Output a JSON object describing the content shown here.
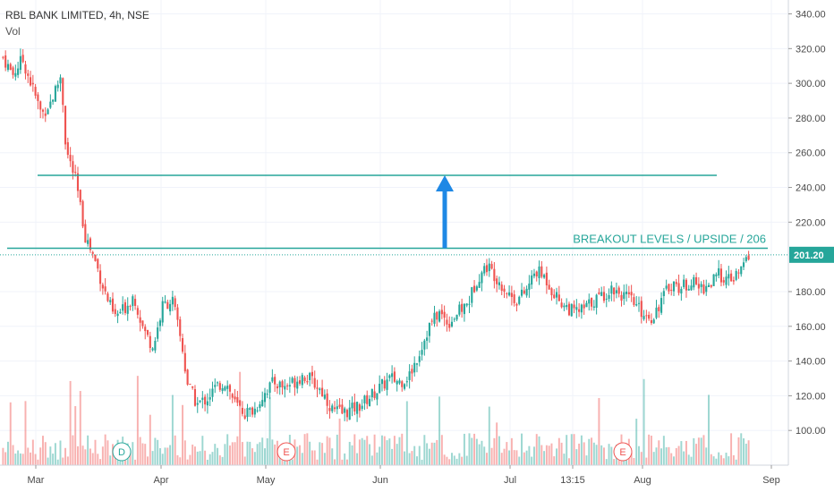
{
  "header": {
    "symbol_line": "RBL BANK LIMITED, 4h, NSE",
    "volume_label": "Vol"
  },
  "annotation": {
    "text": "BREAKOUT LEVELS / UPSIDE / 206"
  },
  "event_markers": [
    "D",
    "E",
    "E"
  ],
  "chart_data": {
    "type": "candlestick",
    "title": "RBL BANK LIMITED, 4h, NSE",
    "xlabel": "",
    "ylabel": "",
    "x_ticks": [
      "Mar",
      "Apr",
      "May",
      "Jun",
      "Jul",
      "13:15",
      "Aug",
      "Sep"
    ],
    "y_ticks": [
      "100.00",
      "120.00",
      "140.00",
      "160.00",
      "180.00",
      "201.20",
      "220.00",
      "240.00",
      "260.00",
      "280.00",
      "300.00",
      "320.00",
      "340.00"
    ],
    "ylim": [
      80,
      348
    ],
    "last_price": 201.2,
    "last_price_label": "201.20",
    "horizontal_levels": [
      247,
      205
    ],
    "arrow": {
      "from": 205,
      "to": 247,
      "color": "#1e88e5"
    },
    "colors": {
      "up": "#26a69a",
      "down": "#ef5350",
      "level_line": "#26a69a",
      "price_label_bg": "#26a69a",
      "arrow": "#1e88e5"
    },
    "price_path": [
      [
        0,
        315
      ],
      [
        2,
        305
      ],
      [
        4,
        314
      ],
      [
        6,
        298
      ],
      [
        8,
        282
      ],
      [
        10,
        290
      ],
      [
        12,
        305
      ],
      [
        13,
        262
      ],
      [
        15,
        244
      ],
      [
        17,
        212
      ],
      [
        19,
        198
      ],
      [
        21,
        180
      ],
      [
        23,
        165
      ],
      [
        25,
        170
      ],
      [
        27,
        178
      ],
      [
        29,
        158
      ],
      [
        31,
        148
      ],
      [
        33,
        172
      ],
      [
        35,
        175
      ],
      [
        37,
        148
      ],
      [
        38,
        128
      ],
      [
        40,
        115
      ],
      [
        42,
        118
      ],
      [
        44,
        125
      ],
      [
        46,
        128
      ],
      [
        48,
        115
      ],
      [
        50,
        110
      ],
      [
        52,
        112
      ],
      [
        54,
        122
      ],
      [
        56,
        128
      ],
      [
        58,
        125
      ],
      [
        60,
        128
      ],
      [
        62,
        132
      ],
      [
        64,
        128
      ],
      [
        66,
        122
      ],
      [
        68,
        112
      ],
      [
        70,
        110
      ],
      [
        72,
        112
      ],
      [
        74,
        115
      ],
      [
        76,
        120
      ],
      [
        78,
        125
      ],
      [
        80,
        130
      ],
      [
        82,
        128
      ],
      [
        84,
        132
      ],
      [
        86,
        145
      ],
      [
        88,
        160
      ],
      [
        90,
        168
      ],
      [
        92,
        162
      ],
      [
        94,
        168
      ],
      [
        96,
        173
      ],
      [
        98,
        188
      ],
      [
        100,
        195
      ],
      [
        102,
        188
      ],
      [
        104,
        180
      ],
      [
        106,
        175
      ],
      [
        108,
        180
      ],
      [
        110,
        192
      ],
      [
        112,
        188
      ],
      [
        114,
        178
      ],
      [
        116,
        172
      ],
      [
        118,
        168
      ],
      [
        120,
        170
      ],
      [
        122,
        175
      ],
      [
        124,
        178
      ],
      [
        126,
        182
      ],
      [
        128,
        178
      ],
      [
        130,
        174
      ],
      [
        132,
        168
      ],
      [
        134,
        165
      ],
      [
        136,
        175
      ],
      [
        138,
        185
      ],
      [
        140,
        182
      ],
      [
        142,
        186
      ],
      [
        144,
        182
      ],
      [
        146,
        184
      ],
      [
        148,
        190
      ],
      [
        150,
        186
      ],
      [
        152,
        190
      ],
      [
        154,
        201
      ]
    ],
    "volume_range": [
      0,
      80
    ]
  }
}
